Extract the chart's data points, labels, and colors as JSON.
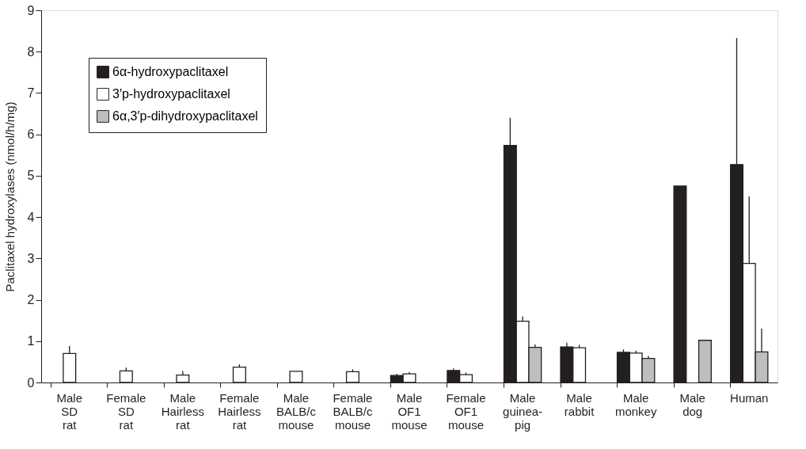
{
  "chart_data": {
    "type": "bar",
    "ylabel": "Paclitaxel hydroxylases (nmol/h/mg)",
    "categories": [
      "Male\nSD\nrat",
      "Female\nSD\nrat",
      "Male\nHairless\nrat",
      "Female\nHairless\nrat",
      "Male\nBALB/c\nmouse",
      "Female\nBALB/c\nmouse",
      "Male\nOF1\nmouse",
      "Female\nOF1\nmouse",
      "Male\nguinea-\npig",
      "Male\nrabbit",
      "Male\nmonkey",
      "Male\ndog",
      "Human"
    ],
    "series": [
      {
        "name": "6α-hydroxypaclitaxel",
        "color": "#231f20",
        "values": [
          null,
          null,
          null,
          null,
          null,
          null,
          0.17,
          0.29,
          5.73,
          0.86,
          0.73,
          4.75,
          5.27
        ],
        "errors": [
          null,
          null,
          null,
          null,
          null,
          null,
          [
            0.17,
            0.21
          ],
          [
            0.29,
            0.34
          ],
          [
            5.73,
            6.4
          ],
          [
            0.86,
            0.96
          ],
          [
            0.73,
            0.8
          ],
          null,
          [
            5.27,
            8.33
          ]
        ]
      },
      {
        "name": "3′p-hydroxypaclitaxel",
        "color": "#ffffff",
        "values": [
          0.7,
          0.28,
          0.18,
          0.37,
          0.27,
          0.26,
          0.21,
          0.19,
          1.48,
          0.84,
          0.71,
          null,
          2.88
        ],
        "errors": [
          [
            0.7,
            0.88
          ],
          [
            0.28,
            0.36
          ],
          [
            0.18,
            0.28
          ],
          [
            0.37,
            0.44
          ],
          null,
          [
            0.26,
            0.32
          ],
          [
            0.21,
            0.25
          ],
          [
            0.19,
            0.24
          ],
          [
            1.48,
            1.6
          ],
          [
            0.84,
            0.91
          ],
          [
            0.71,
            0.77
          ],
          null,
          [
            2.88,
            4.5
          ]
        ]
      },
      {
        "name": "6α,3′p-dihydroxypaclitaxel",
        "color": "#bcbec0",
        "values": [
          null,
          null,
          null,
          null,
          null,
          null,
          null,
          null,
          0.85,
          null,
          0.58,
          1.02,
          0.74
        ],
        "errors": [
          null,
          null,
          null,
          null,
          null,
          null,
          null,
          null,
          [
            0.85,
            0.92
          ],
          null,
          [
            0.58,
            0.64
          ],
          null,
          [
            0.74,
            1.3
          ]
        ]
      }
    ],
    "ylim": [
      0,
      9
    ],
    "yticks": [
      0,
      1,
      2,
      3,
      4,
      5,
      6,
      7,
      8,
      9
    ],
    "grid": false,
    "legend": "top left"
  }
}
